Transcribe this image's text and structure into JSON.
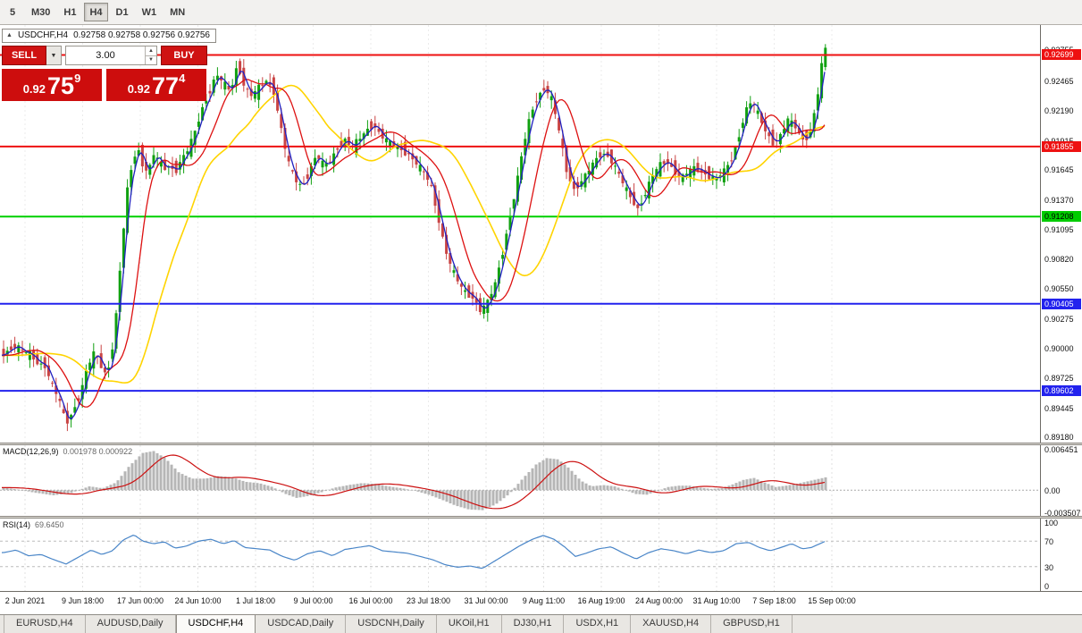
{
  "colors": {
    "candle_up": "#10a010",
    "candle_down": "#c94444",
    "ma_fast": "#2020c0",
    "ma_mid": "#dd1111",
    "ma_slow": "#ffd400",
    "macd_hist": "#b6b6b6",
    "macd_signal": "#cc1111",
    "rsi_line": "#4a86c8",
    "trade_red": "#cd0d0d"
  },
  "icons": {
    "collapse": "▲",
    "dropdown": "▼",
    "spin_up": "▲",
    "spin_down": "▼"
  },
  "toolbar": {
    "timeframes": [
      "5",
      "M30",
      "H1",
      "H4",
      "D1",
      "W1",
      "MN"
    ],
    "active": "H4"
  },
  "header": {
    "symbol": "USDCHF,H4",
    "ohlc": "0.92758 0.92758 0.92756 0.92756"
  },
  "trade": {
    "sell_label": "SELL",
    "buy_label": "BUY",
    "volume": "3.00",
    "bid": {
      "prefix": "0.92",
      "big": "75",
      "sup": "9"
    },
    "ask": {
      "prefix": "0.92",
      "big": "77",
      "sup": "4"
    }
  },
  "price_axis": {
    "labels": [
      "0.92755",
      "0.92465",
      "0.92190",
      "0.91915",
      "0.91645",
      "0.91370",
      "0.91095",
      "0.90820",
      "0.90550",
      "0.90275",
      "0.90000",
      "0.89725",
      "0.89445",
      "0.89180"
    ],
    "tags": [
      {
        "text": "0.92699",
        "bg": "#ee1111",
        "fg": "#ffffff"
      },
      {
        "text": "0.91855",
        "bg": "#ee1111",
        "fg": "#ffffff"
      },
      {
        "text": "0.91208",
        "bg": "#00cc00",
        "fg": "#000000"
      },
      {
        "text": "0.90405",
        "bg": "#2222ee",
        "fg": "#ffffff"
      },
      {
        "text": "0.89602",
        "bg": "#2222ee",
        "fg": "#ffffff"
      }
    ]
  },
  "panels": {
    "macd": {
      "label": "MACD(12,26,9)",
      "values": "0.001978 0.000922",
      "axis": [
        "0.006451",
        "0.00",
        "-0.003507"
      ]
    },
    "rsi": {
      "label": "RSI(14)",
      "value": "69.6450",
      "axis": [
        "100",
        "70",
        "30",
        "0"
      ]
    }
  },
  "time_axis": [
    "2 Jun 2021",
    "9 Jun 18:00",
    "17 Jun 00:00",
    "24 Jun 10:00",
    "1 Jul 18:00",
    "9 Jul 00:00",
    "16 Jul 00:00",
    "23 Jul 18:00",
    "31 Jul 00:00",
    "9 Aug 11:00",
    "16 Aug 19:00",
    "24 Aug 00:00",
    "31 Aug 10:00",
    "7 Sep 18:00",
    "15 Sep 00:00"
  ],
  "tabs": {
    "items": [
      "EURUSD,H4",
      "AUDUSD,Daily",
      "USDCHF,H4",
      "USDCAD,Daily",
      "USDCNH,Daily",
      "UKOil,H1",
      "DJ30,H1",
      "USDX,H1",
      "XAUUSD,H4",
      "GBPUSD,H1"
    ],
    "active": "USDCHF,H4"
  },
  "chart_data": {
    "type": "candlestick",
    "title": "USDCHF,H4",
    "current_close": 0.92756,
    "ylim": [
      0.89125,
      0.92975
    ],
    "hlines": [
      {
        "price": 0.92699,
        "color": "#ee1111"
      },
      {
        "price": 0.91855,
        "color": "#ee1111"
      },
      {
        "price": 0.91208,
        "color": "#00d000"
      },
      {
        "price": 0.90405,
        "color": "#2222ee"
      },
      {
        "price": 0.89602,
        "color": "#2222ee"
      }
    ],
    "price_path": [
      [
        2,
        0.8993
      ],
      [
        10,
        0.8998
      ],
      [
        18,
        0.9002
      ],
      [
        26,
        0.8996
      ],
      [
        34,
        0.8994
      ],
      [
        42,
        0.8986
      ],
      [
        50,
        0.8984
      ],
      [
        58,
        0.8966
      ],
      [
        66,
        0.8952
      ],
      [
        74,
        0.893
      ],
      [
        82,
        0.8942
      ],
      [
        90,
        0.8958
      ],
      [
        98,
        0.8982
      ],
      [
        106,
        0.8996
      ],
      [
        112,
        0.8985
      ],
      [
        118,
        0.8976
      ],
      [
        124,
        0.8988
      ],
      [
        130,
        0.903
      ],
      [
        136,
        0.9088
      ],
      [
        142,
        0.9142
      ],
      [
        148,
        0.917
      ],
      [
        154,
        0.9185
      ],
      [
        160,
        0.9168
      ],
      [
        166,
        0.9162
      ],
      [
        172,
        0.9178
      ],
      [
        178,
        0.9172
      ],
      [
        184,
        0.9165
      ],
      [
        190,
        0.9168
      ],
      [
        196,
        0.9162
      ],
      [
        202,
        0.9172
      ],
      [
        210,
        0.9182
      ],
      [
        218,
        0.9198
      ],
      [
        226,
        0.922
      ],
      [
        234,
        0.9235
      ],
      [
        242,
        0.9252
      ],
      [
        250,
        0.9244
      ],
      [
        258,
        0.9236
      ],
      [
        266,
        0.9262
      ],
      [
        274,
        0.924
      ],
      [
        282,
        0.9232
      ],
      [
        290,
        0.924
      ],
      [
        298,
        0.9246
      ],
      [
        306,
        0.9238
      ],
      [
        314,
        0.9205
      ],
      [
        322,
        0.9172
      ],
      [
        330,
        0.9155
      ],
      [
        338,
        0.9148
      ],
      [
        346,
        0.9162
      ],
      [
        354,
        0.9178
      ],
      [
        362,
        0.9168
      ],
      [
        370,
        0.9172
      ],
      [
        378,
        0.9185
      ],
      [
        386,
        0.9192
      ],
      [
        394,
        0.9185
      ],
      [
        402,
        0.9192
      ],
      [
        410,
        0.92
      ],
      [
        418,
        0.9206
      ],
      [
        426,
        0.9196
      ],
      [
        434,
        0.919
      ],
      [
        442,
        0.9186
      ],
      [
        450,
        0.9182
      ],
      [
        458,
        0.9178
      ],
      [
        466,
        0.917
      ],
      [
        474,
        0.9162
      ],
      [
        482,
        0.915
      ],
      [
        490,
        0.9122
      ],
      [
        498,
        0.9092
      ],
      [
        506,
        0.9072
      ],
      [
        514,
        0.9058
      ],
      [
        522,
        0.905
      ],
      [
        530,
        0.9046
      ],
      [
        538,
        0.9034
      ],
      [
        546,
        0.9042
      ],
      [
        554,
        0.9058
      ],
      [
        562,
        0.9086
      ],
      [
        570,
        0.9118
      ],
      [
        578,
        0.915
      ],
      [
        586,
        0.9186
      ],
      [
        594,
        0.9216
      ],
      [
        602,
        0.9232
      ],
      [
        610,
        0.924
      ],
      [
        618,
        0.9228
      ],
      [
        626,
        0.9198
      ],
      [
        634,
        0.9164
      ],
      [
        642,
        0.9146
      ],
      [
        650,
        0.9152
      ],
      [
        658,
        0.9162
      ],
      [
        666,
        0.9172
      ],
      [
        674,
        0.918
      ],
      [
        682,
        0.9176
      ],
      [
        690,
        0.9164
      ],
      [
        698,
        0.915
      ],
      [
        706,
        0.9138
      ],
      [
        714,
        0.9128
      ],
      [
        722,
        0.9142
      ],
      [
        730,
        0.9158
      ],
      [
        738,
        0.9168
      ],
      [
        746,
        0.9172
      ],
      [
        754,
        0.9164
      ],
      [
        762,
        0.9156
      ],
      [
        770,
        0.9162
      ],
      [
        778,
        0.9166
      ],
      [
        786,
        0.9162
      ],
      [
        794,
        0.9158
      ],
      [
        802,
        0.9156
      ],
      [
        810,
        0.9162
      ],
      [
        818,
        0.9172
      ],
      [
        826,
        0.9192
      ],
      [
        834,
        0.9218
      ],
      [
        842,
        0.9228
      ],
      [
        850,
        0.9212
      ],
      [
        858,
        0.9198
      ],
      [
        866,
        0.9188
      ],
      [
        874,
        0.9196
      ],
      [
        882,
        0.921
      ],
      [
        890,
        0.9204
      ],
      [
        898,
        0.9192
      ],
      [
        906,
        0.9196
      ],
      [
        914,
        0.9226
      ],
      [
        920,
        0.9262
      ],
      [
        924,
        0.9276
      ]
    ],
    "macd_path": [
      [
        4,
        0.0004
      ],
      [
        20,
        0.0001
      ],
      [
        40,
        -0.0004
      ],
      [
        60,
        -0.0008
      ],
      [
        80,
        -0.0004
      ],
      [
        100,
        0.0006
      ],
      [
        115,
        0.0003
      ],
      [
        130,
        0.0012
      ],
      [
        145,
        0.0038
      ],
      [
        160,
        0.0058
      ],
      [
        172,
        0.0061
      ],
      [
        185,
        0.005
      ],
      [
        200,
        0.0028
      ],
      [
        215,
        0.0018
      ],
      [
        230,
        0.0018
      ],
      [
        245,
        0.0022
      ],
      [
        260,
        0.002
      ],
      [
        275,
        0.0013
      ],
      [
        290,
        0.0011
      ],
      [
        305,
        0.0005
      ],
      [
        320,
        -0.0006
      ],
      [
        332,
        -0.0012
      ],
      [
        345,
        -0.0009
      ],
      [
        360,
        -0.0003
      ],
      [
        375,
        0.0004
      ],
      [
        390,
        0.0008
      ],
      [
        405,
        0.0011
      ],
      [
        420,
        0.001
      ],
      [
        435,
        0.0006
      ],
      [
        450,
        0.0003
      ],
      [
        465,
        -0.0001
      ],
      [
        480,
        -0.0007
      ],
      [
        495,
        -0.0015
      ],
      [
        510,
        -0.0024
      ],
      [
        525,
        -0.003
      ],
      [
        540,
        -0.0031
      ],
      [
        555,
        -0.0022
      ],
      [
        570,
        -0.0006
      ],
      [
        585,
        0.0018
      ],
      [
        600,
        0.004
      ],
      [
        612,
        0.005
      ],
      [
        625,
        0.0048
      ],
      [
        638,
        0.0033
      ],
      [
        650,
        0.0015
      ],
      [
        662,
        0.0006
      ],
      [
        675,
        0.0008
      ],
      [
        688,
        0.0006
      ],
      [
        700,
        0.0
      ],
      [
        712,
        -0.0006
      ],
      [
        724,
        -0.0007
      ],
      [
        736,
        -0.0001
      ],
      [
        748,
        0.0005
      ],
      [
        760,
        0.0007
      ],
      [
        772,
        0.0007
      ],
      [
        784,
        0.0004
      ],
      [
        796,
        0.0002
      ],
      [
        808,
        0.0003
      ],
      [
        820,
        0.0009
      ],
      [
        832,
        0.0016
      ],
      [
        844,
        0.0019
      ],
      [
        856,
        0.0012
      ],
      [
        868,
        0.0005
      ],
      [
        880,
        0.0007
      ],
      [
        892,
        0.001
      ],
      [
        905,
        0.0014
      ],
      [
        924,
        0.002
      ]
    ],
    "rsi_path": [
      [
        4,
        52
      ],
      [
        18,
        56
      ],
      [
        32,
        47
      ],
      [
        46,
        49
      ],
      [
        60,
        41
      ],
      [
        74,
        34
      ],
      [
        88,
        45
      ],
      [
        102,
        56
      ],
      [
        114,
        49
      ],
      [
        126,
        55
      ],
      [
        138,
        72
      ],
      [
        150,
        80
      ],
      [
        160,
        70
      ],
      [
        172,
        66
      ],
      [
        184,
        69
      ],
      [
        196,
        59
      ],
      [
        208,
        62
      ],
      [
        222,
        70
      ],
      [
        236,
        73
      ],
      [
        250,
        66
      ],
      [
        262,
        71
      ],
      [
        274,
        60
      ],
      [
        288,
        58
      ],
      [
        302,
        56
      ],
      [
        316,
        46
      ],
      [
        330,
        40
      ],
      [
        344,
        50
      ],
      [
        358,
        55
      ],
      [
        372,
        47
      ],
      [
        386,
        57
      ],
      [
        400,
        60
      ],
      [
        414,
        63
      ],
      [
        428,
        55
      ],
      [
        442,
        53
      ],
      [
        456,
        51
      ],
      [
        470,
        46
      ],
      [
        484,
        41
      ],
      [
        498,
        33
      ],
      [
        512,
        29
      ],
      [
        526,
        31
      ],
      [
        540,
        27
      ],
      [
        554,
        39
      ],
      [
        568,
        51
      ],
      [
        582,
        63
      ],
      [
        596,
        73
      ],
      [
        608,
        79
      ],
      [
        620,
        73
      ],
      [
        632,
        61
      ],
      [
        644,
        46
      ],
      [
        656,
        51
      ],
      [
        670,
        58
      ],
      [
        684,
        61
      ],
      [
        698,
        51
      ],
      [
        712,
        42
      ],
      [
        726,
        52
      ],
      [
        740,
        58
      ],
      [
        754,
        55
      ],
      [
        768,
        50
      ],
      [
        782,
        56
      ],
      [
        796,
        52
      ],
      [
        810,
        55
      ],
      [
        824,
        66
      ],
      [
        838,
        68
      ],
      [
        850,
        60
      ],
      [
        862,
        55
      ],
      [
        874,
        60
      ],
      [
        886,
        66
      ],
      [
        898,
        58
      ],
      [
        908,
        60
      ],
      [
        924,
        70
      ]
    ]
  }
}
